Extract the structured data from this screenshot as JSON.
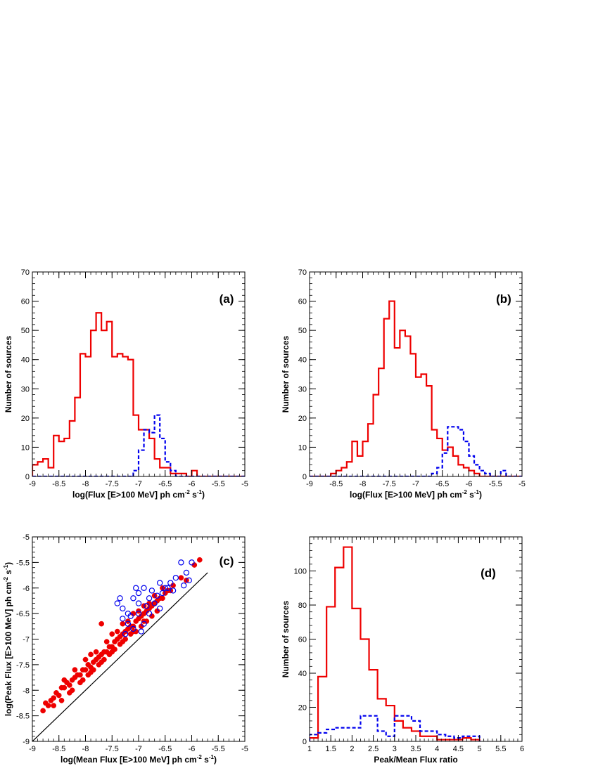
{
  "chart_data": [
    {
      "type": "histogram",
      "panel_label": "(a)",
      "xlabel": "log(Flux [E>100 MeV] ph cm$^{-2}$ s$^{-1}$)",
      "ylabel": "Number of sources",
      "xlim": [
        -9,
        -5
      ],
      "ylim": [
        0,
        70
      ],
      "xticks": [
        -9,
        -8.5,
        -8,
        -7.5,
        -7,
        -6.5,
        -6,
        -5.5,
        -5
      ],
      "yticks": [
        0,
        10,
        20,
        30,
        40,
        50,
        60,
        70
      ],
      "bin_start": -9.0,
      "bin_width": 0.1,
      "series": [
        {
          "style": "solid",
          "color": "#ee0000",
          "values": [
            4,
            5,
            6,
            3,
            14,
            12,
            13,
            19,
            27,
            42,
            41,
            50,
            56,
            50,
            53,
            41,
            42,
            41,
            40,
            21,
            16,
            16,
            13,
            6,
            3,
            3,
            1,
            1,
            1,
            0,
            2,
            0,
            0,
            0,
            0,
            0,
            0,
            0,
            0,
            0
          ]
        },
        {
          "style": "dashed",
          "color": "#0000ee",
          "values": [
            0,
            0,
            0,
            0,
            0,
            0,
            0,
            0,
            0,
            0,
            0,
            0,
            0,
            0,
            0,
            0,
            0,
            0,
            0,
            2,
            9,
            16,
            15,
            21,
            13,
            5,
            2,
            0,
            0,
            0,
            0,
            0,
            0,
            0,
            0,
            0,
            0,
            0,
            0,
            0
          ]
        }
      ]
    },
    {
      "type": "histogram",
      "panel_label": "(b)",
      "xlabel": "log(Flux [E>100 MeV] ph cm$^{-2}$ s$^{-1}$)",
      "ylabel": "Number of sources",
      "xlim": [
        -9,
        -5
      ],
      "ylim": [
        0,
        70
      ],
      "xticks": [
        -9,
        -8.5,
        -8,
        -7.5,
        -7,
        -6.5,
        -6,
        -5.5,
        -5
      ],
      "yticks": [
        0,
        10,
        20,
        30,
        40,
        50,
        60,
        70
      ],
      "bin_start": -9.0,
      "bin_width": 0.1,
      "series": [
        {
          "style": "solid",
          "color": "#ee0000",
          "values": [
            0,
            0,
            0,
            0,
            1,
            2,
            3,
            5,
            12,
            7,
            12,
            18,
            28,
            37,
            54,
            60,
            44,
            50,
            48,
            42,
            34,
            35,
            31,
            16,
            13,
            9,
            10,
            7,
            4,
            3,
            2,
            1,
            0,
            0,
            0,
            0,
            0,
            0,
            0,
            0
          ]
        },
        {
          "style": "dashed",
          "color": "#0000ee",
          "values": [
            0,
            0,
            0,
            0,
            0,
            0,
            0,
            0,
            0,
            0,
            0,
            0,
            0,
            0,
            0,
            0,
            0,
            0,
            0,
            0,
            0,
            0,
            0,
            1,
            3,
            8,
            17,
            17,
            16,
            12,
            7,
            4,
            2,
            1,
            0,
            0,
            2,
            0,
            0,
            0
          ]
        }
      ]
    },
    {
      "type": "scatter",
      "panel_label": "(c)",
      "xlabel": "log(Mean Flux [E>100 MeV] ph cm$^{-2}$ s$^{-1}$)",
      "ylabel": "log(Peak Flux [E>100 MeV] ph cm$^{-2}$ s$^{-1}$)",
      "xlim": [
        -9,
        -5
      ],
      "ylim": [
        -9,
        -5
      ],
      "xticks": [
        -9,
        -8.5,
        -8,
        -7.5,
        -7,
        -6.5,
        -6,
        -5.5,
        -5
      ],
      "yticks": [
        -9,
        -8.5,
        -8,
        -7.5,
        -7,
        -6.5,
        -6,
        -5.5,
        -5
      ],
      "reference_line": {
        "from": [
          -9,
          -9
        ],
        "to": [
          -5.7,
          -5.7
        ],
        "color": "#000000"
      },
      "series": [
        {
          "marker": "filled-circle",
          "color": "#ee0000",
          "points": [
            [
              -8.8,
              -8.4
            ],
            [
              -8.75,
              -8.25
            ],
            [
              -8.7,
              -8.3
            ],
            [
              -8.65,
              -8.2
            ],
            [
              -8.6,
              -8.15
            ],
            [
              -8.55,
              -8.05
            ],
            [
              -8.5,
              -8.1
            ],
            [
              -8.45,
              -7.95
            ],
            [
              -8.4,
              -7.95
            ],
            [
              -8.35,
              -7.85
            ],
            [
              -8.3,
              -7.9
            ],
            [
              -8.25,
              -7.8
            ],
            [
              -8.2,
              -7.75
            ],
            [
              -8.15,
              -7.7
            ],
            [
              -8.1,
              -7.7
            ],
            [
              -8.05,
              -7.6
            ],
            [
              -8.0,
              -7.6
            ],
            [
              -7.95,
              -7.5
            ],
            [
              -7.9,
              -7.55
            ],
            [
              -7.85,
              -7.45
            ],
            [
              -7.8,
              -7.4
            ],
            [
              -7.75,
              -7.35
            ],
            [
              -7.7,
              -7.3
            ],
            [
              -7.65,
              -7.25
            ],
            [
              -7.6,
              -7.25
            ],
            [
              -7.55,
              -7.15
            ],
            [
              -7.5,
              -7.15
            ],
            [
              -7.45,
              -7.05
            ],
            [
              -7.4,
              -7.0
            ],
            [
              -7.35,
              -6.95
            ],
            [
              -7.3,
              -6.9
            ],
            [
              -7.25,
              -6.85
            ],
            [
              -7.2,
              -6.8
            ],
            [
              -7.15,
              -6.75
            ],
            [
              -7.1,
              -6.75
            ],
            [
              -7.05,
              -6.65
            ],
            [
              -7.0,
              -6.6
            ],
            [
              -6.95,
              -6.55
            ],
            [
              -6.9,
              -6.5
            ],
            [
              -6.85,
              -6.45
            ],
            [
              -6.8,
              -6.4
            ],
            [
              -6.75,
              -6.35
            ],
            [
              -6.7,
              -6.3
            ],
            [
              -6.65,
              -6.25
            ],
            [
              -6.6,
              -6.2
            ],
            [
              -6.55,
              -6.2
            ],
            [
              -6.5,
              -6.1
            ],
            [
              -6.45,
              -6.05
            ],
            [
              -6.4,
              -6.05
            ],
            [
              -6.2,
              -5.8
            ],
            [
              -6.1,
              -5.85
            ],
            [
              -5.85,
              -5.45
            ],
            [
              -5.95,
              -5.55
            ],
            [
              -6.35,
              -5.95
            ],
            [
              -8.6,
              -8.3
            ],
            [
              -8.3,
              -8.05
            ],
            [
              -8.1,
              -7.85
            ],
            [
              -7.95,
              -7.7
            ],
            [
              -7.85,
              -7.6
            ],
            [
              -7.75,
              -7.5
            ],
            [
              -7.65,
              -7.4
            ],
            [
              -7.55,
              -7.3
            ],
            [
              -7.45,
              -7.2
            ],
            [
              -7.35,
              -7.1
            ],
            [
              -7.25,
              -7.0
            ],
            [
              -7.15,
              -6.9
            ],
            [
              -7.05,
              -6.85
            ],
            [
              -6.95,
              -6.75
            ],
            [
              -6.85,
              -6.65
            ],
            [
              -6.75,
              -6.55
            ],
            [
              -6.65,
              -6.45
            ],
            [
              -8.4,
              -7.8
            ],
            [
              -8.2,
              -7.6
            ],
            [
              -8.0,
              -7.4
            ],
            [
              -7.8,
              -7.25
            ],
            [
              -7.6,
              -7.05
            ],
            [
              -7.4,
              -6.85
            ],
            [
              -7.2,
              -6.65
            ],
            [
              -7.0,
              -6.45
            ],
            [
              -6.8,
              -6.3
            ],
            [
              -7.7,
              -6.7
            ],
            [
              -7.9,
              -7.3
            ],
            [
              -7.5,
              -6.9
            ],
            [
              -7.3,
              -6.7
            ],
            [
              -7.1,
              -6.5
            ],
            [
              -6.9,
              -6.35
            ],
            [
              -6.7,
              -6.15
            ],
            [
              -6.55,
              -6.0
            ],
            [
              -8.45,
              -8.2
            ],
            [
              -8.25,
              -8.0
            ],
            [
              -8.05,
              -7.8
            ],
            [
              -7.9,
              -7.65
            ],
            [
              -7.7,
              -7.45
            ],
            [
              -7.5,
              -7.25
            ],
            [
              -7.3,
              -7.05
            ],
            [
              -7.1,
              -6.85
            ],
            [
              -6.9,
              -6.65
            ]
          ]
        },
        {
          "marker": "open-circle",
          "color": "#0000ee",
          "points": [
            [
              -7.4,
              -6.3
            ],
            [
              -7.3,
              -6.4
            ],
            [
              -7.2,
              -6.5
            ],
            [
              -7.1,
              -6.2
            ],
            [
              -7.0,
              -6.1
            ],
            [
              -6.9,
              -6.0
            ],
            [
              -6.8,
              -6.2
            ],
            [
              -6.7,
              -6.3
            ],
            [
              -6.6,
              -5.9
            ],
            [
              -6.5,
              -6.0
            ],
            [
              -6.4,
              -5.9
            ],
            [
              -6.3,
              -5.8
            ],
            [
              -6.2,
              -5.5
            ],
            [
              -6.1,
              -5.7
            ],
            [
              -6.0,
              -5.5
            ],
            [
              -7.0,
              -6.5
            ],
            [
              -7.2,
              -6.7
            ],
            [
              -7.1,
              -6.8
            ],
            [
              -6.9,
              -6.7
            ],
            [
              -6.8,
              -6.5
            ],
            [
              -7.3,
              -6.6
            ],
            [
              -7.0,
              -6.3
            ],
            [
              -6.75,
              -6.05
            ],
            [
              -6.55,
              -6.1
            ],
            [
              -6.95,
              -6.85
            ],
            [
              -6.65,
              -6.15
            ],
            [
              -7.15,
              -6.55
            ],
            [
              -6.85,
              -6.35
            ],
            [
              -6.45,
              -6.0
            ],
            [
              -6.35,
              -6.05
            ],
            [
              -6.15,
              -5.95
            ],
            [
              -6.05,
              -5.85
            ],
            [
              -7.25,
              -6.9
            ],
            [
              -6.6,
              -6.4
            ],
            [
              -7.35,
              -6.2
            ],
            [
              -7.05,
              -6.0
            ]
          ]
        }
      ]
    },
    {
      "type": "histogram",
      "panel_label": "(d)",
      "xlabel": "Peak/Mean Flux ratio",
      "ylabel": "Number of sources",
      "xlim": [
        1,
        6
      ],
      "ylim": [
        0,
        120
      ],
      "xticks": [
        1,
        1.5,
        2,
        2.5,
        3,
        3.5,
        4,
        4.5,
        5,
        5.5,
        6
      ],
      "xtick_labels": [
        "1",
        "1.5",
        "2",
        "2.5",
        "3",
        "3.5",
        "4",
        "4.5",
        "5",
        "5.5",
        "6"
      ],
      "yticks": [
        0,
        20,
        40,
        60,
        80,
        100
      ],
      "bin_start": 1.0,
      "bin_width": 0.2,
      "series": [
        {
          "style": "solid",
          "color": "#ee0000",
          "values": [
            2,
            38,
            79,
            102,
            114,
            78,
            60,
            42,
            25,
            21,
            12,
            8,
            6,
            3,
            3,
            1,
            1,
            1,
            2,
            1
          ]
        },
        {
          "style": "dashed",
          "color": "#0000ee",
          "values": [
            4,
            5,
            7,
            8,
            8,
            8,
            15,
            15,
            6,
            3,
            15,
            15,
            12,
            6,
            6,
            4,
            3,
            2,
            3,
            3
          ]
        }
      ]
    }
  ]
}
